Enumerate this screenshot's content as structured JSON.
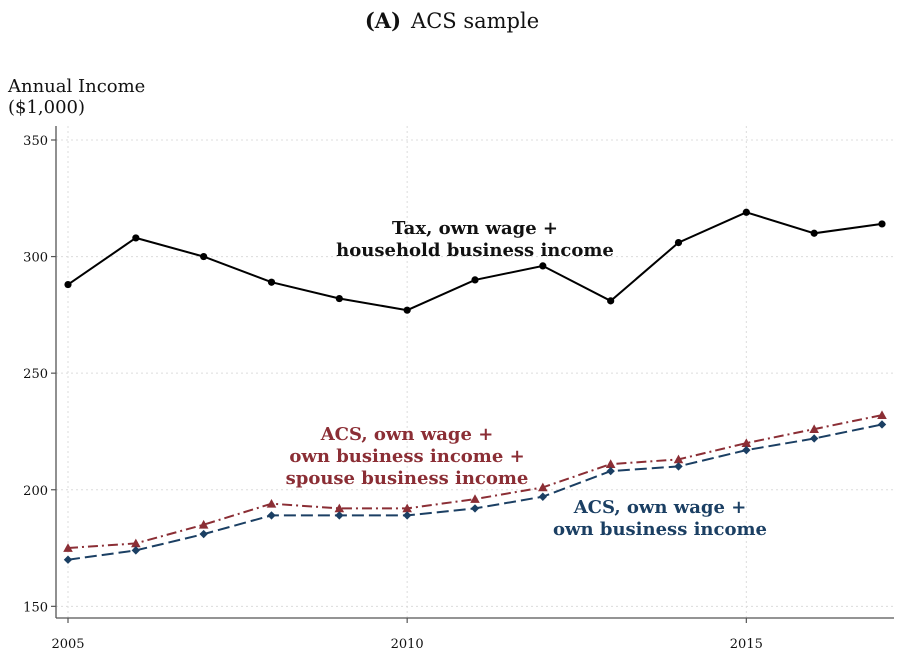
{
  "title": {
    "panel": "(A)",
    "text": "ACS sample"
  },
  "chart_data": {
    "type": "line",
    "ylabel": [
      "Annual Income",
      "($1,000)"
    ],
    "x": [
      2005,
      2006,
      2007,
      2008,
      2009,
      2010,
      2011,
      2012,
      2013,
      2014,
      2015,
      2016,
      2017
    ],
    "xlim": [
      2005,
      2017.7
    ],
    "ylim": [
      145,
      356
    ],
    "xticks": [
      2005,
      2010,
      2015
    ],
    "yticks": [
      150,
      200,
      250,
      300,
      350
    ],
    "grid": true,
    "series": [
      {
        "values": [
          288,
          308,
          300,
          289,
          282,
          277,
          290,
          296,
          281,
          306,
          319,
          310,
          314
        ],
        "color": "#000000",
        "marker": "circle",
        "dash": "solid"
      },
      {
        "values": [
          175,
          177,
          185,
          194,
          192,
          192,
          196,
          201,
          211,
          213,
          220,
          226,
          232
        ],
        "color": "#8b2e35",
        "marker": "triangle",
        "dash": "dashdot"
      },
      {
        "values": [
          170,
          174,
          181,
          189,
          189,
          189,
          192,
          197,
          208,
          210,
          217,
          222,
          228
        ],
        "color": "#1b3f63",
        "marker": "diamond",
        "dash": "dashed"
      }
    ],
    "annotations": [
      {
        "lines": [
          "Tax, own wage +",
          "household business income"
        ],
        "color": "#000000"
      },
      {
        "lines": [
          "ACS, own wage +",
          "own business income +",
          "spouse business income"
        ],
        "color": "#8b2e35"
      },
      {
        "lines": [
          "ACS, own wage +",
          "own business income"
        ],
        "color": "#1b3f63"
      }
    ]
  }
}
